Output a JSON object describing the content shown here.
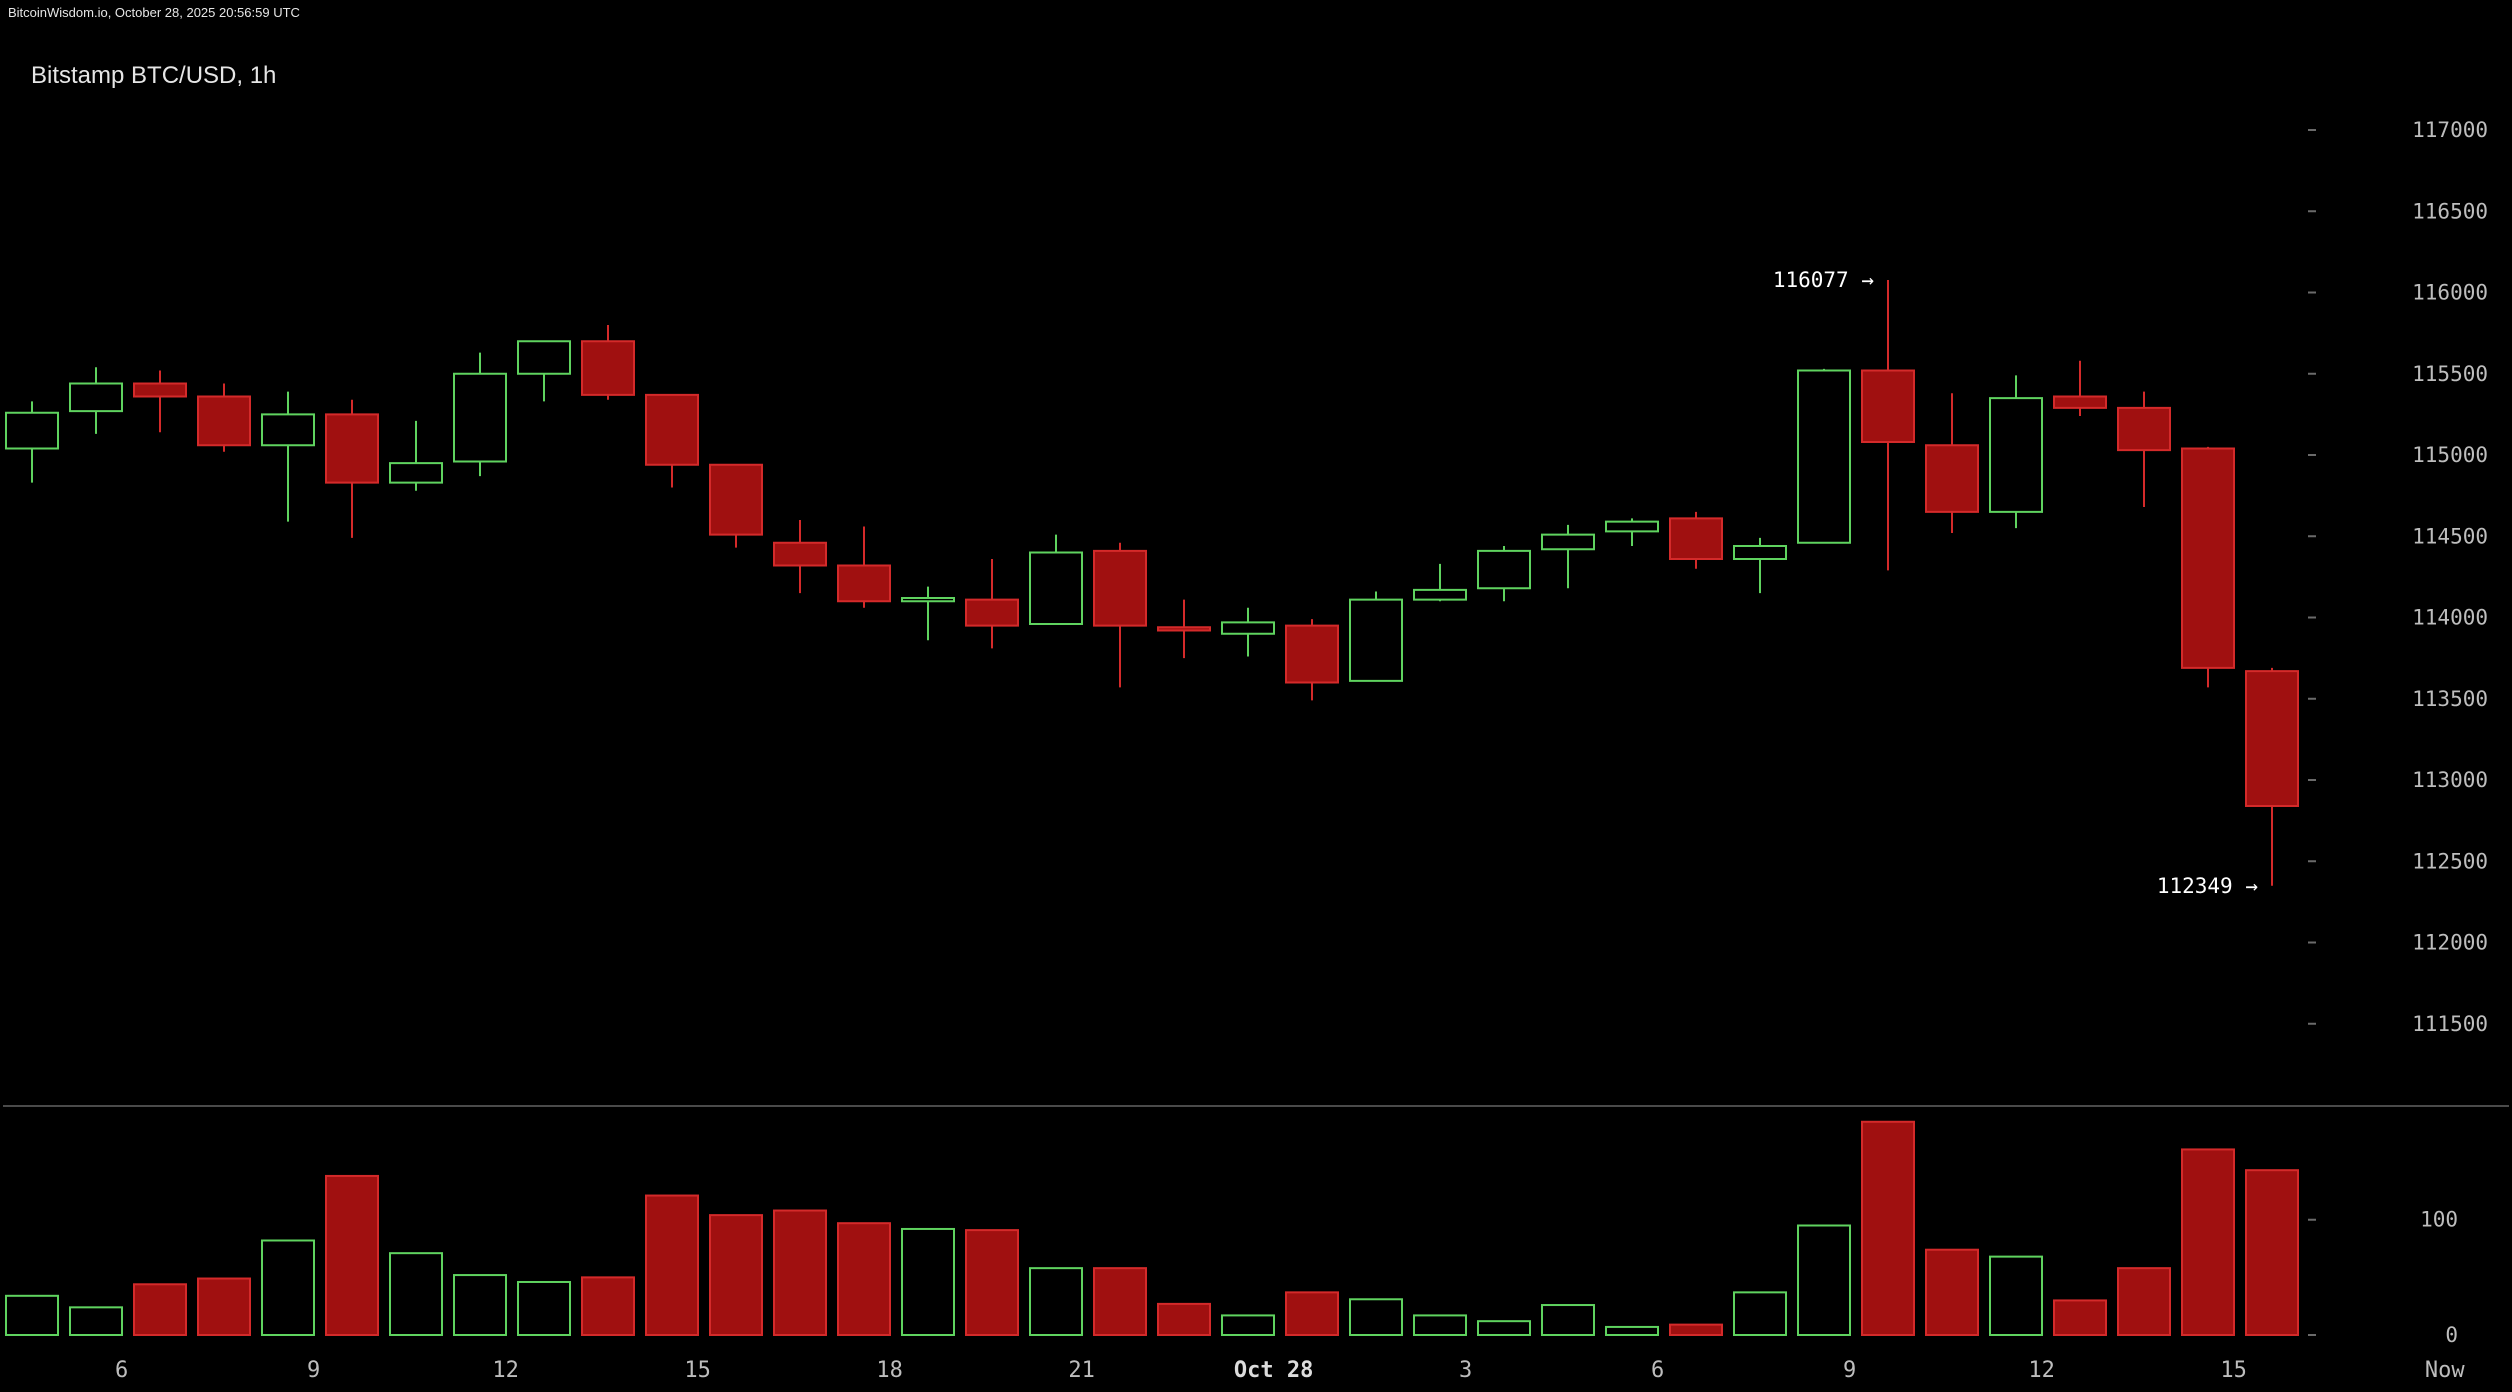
{
  "source_bar": "BitcoinWisdom.io, October 28, 2025 20:56:59 UTC",
  "title": "Bitstamp BTC/USD, 1h",
  "colors": {
    "up": "#5fd35f",
    "down": "#a01010",
    "down_stroke": "#d42a2a",
    "background": "#000000",
    "separator": "#4a4a4a",
    "text": "#bdbdbd"
  },
  "chart_data": {
    "type": "candlestick",
    "title": "Bitstamp BTC/USD, 1h",
    "price_axis": {
      "min": 111000,
      "max": 117400,
      "ticks": [
        117000,
        116500,
        116000,
        115500,
        115000,
        114500,
        114000,
        113500,
        113000,
        112500,
        112000,
        111500
      ]
    },
    "volume_axis": {
      "min": 0,
      "max": 190,
      "ticks": [
        100,
        0
      ]
    },
    "x_ticks": [
      {
        "label": "6",
        "index": 1.4
      },
      {
        "label": "9",
        "index": 4.4
      },
      {
        "label": "12",
        "index": 7.4
      },
      {
        "label": "15",
        "index": 10.4
      },
      {
        "label": "18",
        "index": 13.4
      },
      {
        "label": "21",
        "index": 16.4
      },
      {
        "label": "Oct 28",
        "index": 19.4,
        "bold": true
      },
      {
        "label": "3",
        "index": 22.4
      },
      {
        "label": "6",
        "index": 25.4
      },
      {
        "label": "9",
        "index": 28.4
      },
      {
        "label": "12",
        "index": 31.4
      },
      {
        "label": "15",
        "index": 34.4
      },
      {
        "label": "Now",
        "index": 37.7
      }
    ],
    "annotations": [
      {
        "text": "116077 →",
        "index": 29,
        "price": 116077
      },
      {
        "text": "112349 →",
        "index": 35,
        "price": 112349
      }
    ],
    "candles": [
      {
        "o": 115040,
        "h": 115330,
        "l": 114830,
        "c": 115260,
        "v": 34
      },
      {
        "o": 115270,
        "h": 115540,
        "l": 115130,
        "c": 115440,
        "v": 24
      },
      {
        "o": 115440,
        "h": 115520,
        "l": 115140,
        "c": 115360,
        "v": 44
      },
      {
        "o": 115360,
        "h": 115440,
        "l": 115020,
        "c": 115060,
        "v": 49
      },
      {
        "o": 115060,
        "h": 115390,
        "l": 114590,
        "c": 115250,
        "v": 82
      },
      {
        "o": 115250,
        "h": 115340,
        "l": 114490,
        "c": 114830,
        "v": 138
      },
      {
        "o": 114830,
        "h": 115210,
        "l": 114780,
        "c": 114950,
        "v": 71
      },
      {
        "o": 114960,
        "h": 115630,
        "l": 114870,
        "c": 115500,
        "v": 52
      },
      {
        "o": 115500,
        "h": 115700,
        "l": 115330,
        "c": 115700,
        "v": 46
      },
      {
        "o": 115700,
        "h": 115800,
        "l": 115340,
        "c": 115370,
        "v": 50
      },
      {
        "o": 115370,
        "h": 115370,
        "l": 114800,
        "c": 114940,
        "v": 121
      },
      {
        "o": 114940,
        "h": 114940,
        "l": 114430,
        "c": 114510,
        "v": 104
      },
      {
        "o": 114460,
        "h": 114600,
        "l": 114150,
        "c": 114320,
        "v": 108
      },
      {
        "o": 114320,
        "h": 114560,
        "l": 114060,
        "c": 114100,
        "v": 97
      },
      {
        "o": 114100,
        "h": 114190,
        "l": 113860,
        "c": 114120,
        "v": 92
      },
      {
        "o": 114110,
        "h": 114360,
        "l": 113810,
        "c": 113950,
        "v": 91
      },
      {
        "o": 113960,
        "h": 114510,
        "l": 113960,
        "c": 114400,
        "v": 58
      },
      {
        "o": 114410,
        "h": 114460,
        "l": 113570,
        "c": 113950,
        "v": 58
      },
      {
        "o": 113940,
        "h": 114110,
        "l": 113750,
        "c": 113920,
        "v": 27
      },
      {
        "o": 113900,
        "h": 114060,
        "l": 113760,
        "c": 113970,
        "v": 17
      },
      {
        "o": 113950,
        "h": 113990,
        "l": 113490,
        "c": 113600,
        "v": 37
      },
      {
        "o": 113610,
        "h": 114160,
        "l": 113610,
        "c": 114110,
        "v": 31
      },
      {
        "o": 114110,
        "h": 114330,
        "l": 114100,
        "c": 114170,
        "v": 17
      },
      {
        "o": 114180,
        "h": 114440,
        "l": 114100,
        "c": 114410,
        "v": 12
      },
      {
        "o": 114420,
        "h": 114570,
        "l": 114180,
        "c": 114510,
        "v": 26
      },
      {
        "o": 114530,
        "h": 114610,
        "l": 114440,
        "c": 114590,
        "v": 7
      },
      {
        "o": 114610,
        "h": 114650,
        "l": 114300,
        "c": 114360,
        "v": 9
      },
      {
        "o": 114360,
        "h": 114490,
        "l": 114150,
        "c": 114440,
        "v": 37
      },
      {
        "o": 114460,
        "h": 115530,
        "l": 114460,
        "c": 115520,
        "v": 95
      },
      {
        "o": 115520,
        "h": 116077,
        "l": 114290,
        "c": 115080,
        "v": 185
      },
      {
        "o": 115060,
        "h": 115380,
        "l": 114520,
        "c": 114650,
        "v": 74
      },
      {
        "o": 114650,
        "h": 115490,
        "l": 114550,
        "c": 115350,
        "v": 68
      },
      {
        "o": 115360,
        "h": 115580,
        "l": 115240,
        "c": 115290,
        "v": 30
      },
      {
        "o": 115290,
        "h": 115390,
        "l": 114680,
        "c": 115030,
        "v": 58
      },
      {
        "o": 115040,
        "h": 115050,
        "l": 113570,
        "c": 113690,
        "v": 161
      },
      {
        "o": 113670,
        "h": 113690,
        "l": 112349,
        "c": 112840,
        "v": 143
      }
    ]
  }
}
